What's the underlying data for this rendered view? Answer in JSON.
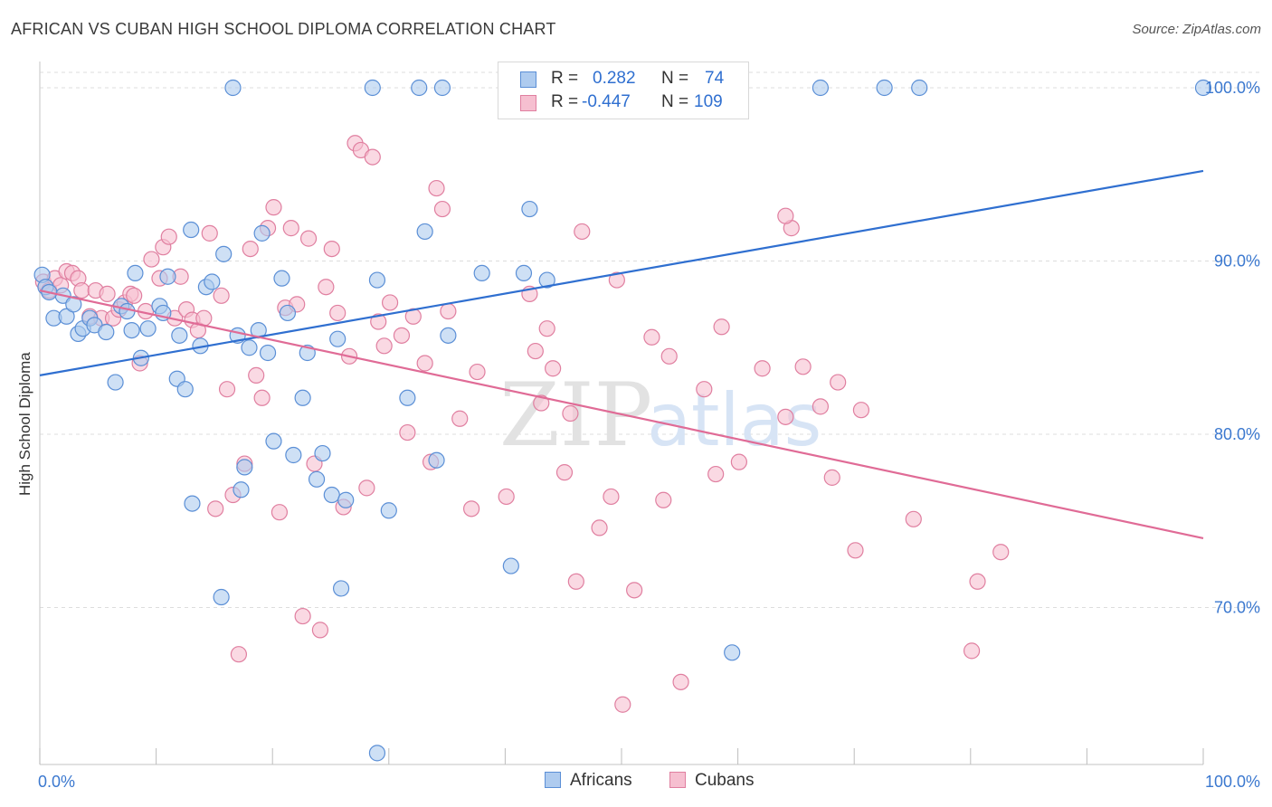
{
  "header": {
    "title": "AFRICAN VS CUBAN HIGH SCHOOL DIPLOMA CORRELATION CHART",
    "source": "Source: ZipAtlas.com"
  },
  "watermark": {
    "zip": "ZIP",
    "atlas": "atlas"
  },
  "legend": {
    "africans": {
      "r_label": "R =",
      "r_value": "0.282",
      "n_label": "N =",
      "n_value": "74"
    },
    "cubans": {
      "r_label": "R =",
      "r_value": "-0.447",
      "n_label": "N =",
      "n_value": "109"
    }
  },
  "bottom_legend": {
    "africans": "Africans",
    "cubans": "Cubans"
  },
  "colors": {
    "africans_fill": "#aecbef",
    "africans_stroke": "#5b8fd6",
    "africans_line": "#2f6fd0",
    "cubans_fill": "#f6bfd0",
    "cubans_stroke": "#e07fa0",
    "cubans_line": "#e06b96",
    "axis_text": "#3b78cf",
    "grid": "#dddddd"
  },
  "chart_data": {
    "type": "scatter",
    "title": "AFRICAN VS CUBAN HIGH SCHOOL DIPLOMA CORRELATION CHART",
    "xlabel": "",
    "ylabel": "High School Diploma",
    "xlim": [
      0,
      100
    ],
    "ylim": [
      61,
      101
    ],
    "x_tick_labels": [
      {
        "v": 0,
        "label": "0.0%"
      },
      {
        "v": 100,
        "label": "100.0%"
      }
    ],
    "y_tick_labels": [
      {
        "v": 100,
        "label": "100.0%"
      },
      {
        "v": 90,
        "label": "90.0%"
      },
      {
        "v": 80,
        "label": "80.0%"
      },
      {
        "v": 70,
        "label": "70.0%"
      }
    ],
    "grid": true,
    "legend_position": "top-center",
    "series": [
      {
        "name": "Africans",
        "trend": [
          [
            0,
            83.4
          ],
          [
            100,
            95.2
          ]
        ],
        "points": [
          [
            0.2,
            89.2
          ],
          [
            0.5,
            88.5
          ],
          [
            1.2,
            86.7
          ],
          [
            2.0,
            88.0
          ],
          [
            2.3,
            86.8
          ],
          [
            2.9,
            87.5
          ],
          [
            3.3,
            85.8
          ],
          [
            3.7,
            86.1
          ],
          [
            4.3,
            86.7
          ],
          [
            4.7,
            86.3
          ],
          [
            5.7,
            85.9
          ],
          [
            6.5,
            83.0
          ],
          [
            7.0,
            87.4
          ],
          [
            7.5,
            87.1
          ],
          [
            7.9,
            86.0
          ],
          [
            8.2,
            89.3
          ],
          [
            8.7,
            84.4
          ],
          [
            9.3,
            86.1
          ],
          [
            10.3,
            87.4
          ],
          [
            10.6,
            87.0
          ],
          [
            11.0,
            89.1
          ],
          [
            11.8,
            83.2
          ],
          [
            12.0,
            85.7
          ],
          [
            12.5,
            82.6
          ],
          [
            13.0,
            91.8
          ],
          [
            13.8,
            85.1
          ],
          [
            14.3,
            88.5
          ],
          [
            14.8,
            88.8
          ],
          [
            15.8,
            90.4
          ],
          [
            16.6,
            100.0
          ],
          [
            17.0,
            85.7
          ],
          [
            17.3,
            76.8
          ],
          [
            17.6,
            78.1
          ],
          [
            18.0,
            85.0
          ],
          [
            18.8,
            86.0
          ],
          [
            19.1,
            91.6
          ],
          [
            19.6,
            84.7
          ],
          [
            20.1,
            79.6
          ],
          [
            20.8,
            89.0
          ],
          [
            21.3,
            87.0
          ],
          [
            21.8,
            78.8
          ],
          [
            22.6,
            82.1
          ],
          [
            23.0,
            84.7
          ],
          [
            23.8,
            77.4
          ],
          [
            24.3,
            78.9
          ],
          [
            25.1,
            76.5
          ],
          [
            25.6,
            85.5
          ],
          [
            25.9,
            71.1
          ],
          [
            26.3,
            76.2
          ],
          [
            29.0,
            61.6
          ],
          [
            28.6,
            100.0
          ],
          [
            29.0,
            88.9
          ],
          [
            30.0,
            75.6
          ],
          [
            31.6,
            82.1
          ],
          [
            32.6,
            100.0
          ],
          [
            33.1,
            91.7
          ],
          [
            34.1,
            78.5
          ],
          [
            34.6,
            100.0
          ],
          [
            35.1,
            85.7
          ],
          [
            38.0,
            89.3
          ],
          [
            40.5,
            72.4
          ],
          [
            41.6,
            89.3
          ],
          [
            42.1,
            93.0
          ],
          [
            43.6,
            88.9
          ],
          [
            13.1,
            76.0
          ],
          [
            15.6,
            70.6
          ],
          [
            51.1,
            100.0
          ],
          [
            53.6,
            100.0
          ],
          [
            59.5,
            67.4
          ],
          [
            67.1,
            100.0
          ],
          [
            72.6,
            100.0
          ],
          [
            75.6,
            100.0
          ],
          [
            100.0,
            100.0
          ],
          [
            0.8,
            88.2
          ]
        ]
      },
      {
        "name": "Cubans",
        "trend": [
          [
            0,
            88.3
          ],
          [
            100,
            74.0
          ]
        ],
        "points": [
          [
            0.3,
            88.8
          ],
          [
            0.8,
            88.3
          ],
          [
            1.3,
            89.0
          ],
          [
            1.8,
            88.6
          ],
          [
            2.3,
            89.4
          ],
          [
            2.8,
            89.3
          ],
          [
            3.3,
            89.0
          ],
          [
            3.6,
            88.3
          ],
          [
            4.3,
            86.8
          ],
          [
            4.8,
            88.3
          ],
          [
            5.3,
            86.7
          ],
          [
            5.8,
            88.1
          ],
          [
            6.3,
            86.7
          ],
          [
            6.8,
            87.2
          ],
          [
            7.3,
            87.6
          ],
          [
            7.8,
            88.1
          ],
          [
            8.1,
            88.0
          ],
          [
            8.6,
            84.1
          ],
          [
            9.1,
            87.1
          ],
          [
            9.6,
            90.1
          ],
          [
            10.3,
            89.0
          ],
          [
            10.6,
            90.8
          ],
          [
            11.1,
            91.4
          ],
          [
            11.6,
            86.7
          ],
          [
            12.1,
            89.1
          ],
          [
            12.6,
            87.2
          ],
          [
            13.1,
            86.6
          ],
          [
            13.6,
            86.0
          ],
          [
            14.1,
            86.7
          ],
          [
            14.6,
            91.6
          ],
          [
            15.1,
            75.7
          ],
          [
            15.6,
            88.0
          ],
          [
            16.1,
            82.6
          ],
          [
            16.6,
            76.5
          ],
          [
            17.1,
            67.3
          ],
          [
            17.6,
            78.3
          ],
          [
            18.1,
            90.7
          ],
          [
            18.6,
            83.4
          ],
          [
            19.1,
            82.1
          ],
          [
            19.6,
            91.9
          ],
          [
            20.1,
            93.1
          ],
          [
            20.6,
            75.5
          ],
          [
            21.1,
            87.3
          ],
          [
            21.6,
            91.9
          ],
          [
            22.1,
            87.5
          ],
          [
            22.6,
            69.5
          ],
          [
            23.1,
            91.3
          ],
          [
            23.6,
            78.3
          ],
          [
            24.1,
            68.7
          ],
          [
            24.6,
            88.5
          ],
          [
            25.1,
            90.7
          ],
          [
            25.6,
            87.0
          ],
          [
            26.1,
            75.8
          ],
          [
            26.6,
            84.5
          ],
          [
            27.1,
            96.8
          ],
          [
            27.6,
            96.4
          ],
          [
            28.1,
            76.9
          ],
          [
            28.6,
            96.0
          ],
          [
            29.1,
            86.5
          ],
          [
            29.6,
            85.1
          ],
          [
            30.1,
            87.6
          ],
          [
            31.1,
            85.7
          ],
          [
            31.6,
            80.1
          ],
          [
            32.1,
            86.8
          ],
          [
            33.1,
            84.1
          ],
          [
            33.6,
            78.4
          ],
          [
            34.1,
            94.2
          ],
          [
            34.6,
            93.0
          ],
          [
            35.1,
            87.1
          ],
          [
            36.1,
            80.9
          ],
          [
            37.1,
            75.7
          ],
          [
            37.6,
            83.6
          ],
          [
            40.1,
            76.4
          ],
          [
            42.1,
            88.1
          ],
          [
            42.6,
            84.8
          ],
          [
            43.1,
            81.8
          ],
          [
            43.6,
            86.1
          ],
          [
            44.1,
            83.8
          ],
          [
            45.1,
            77.8
          ],
          [
            45.6,
            81.2
          ],
          [
            46.1,
            71.5
          ],
          [
            46.6,
            91.7
          ],
          [
            48.1,
            74.6
          ],
          [
            49.1,
            76.4
          ],
          [
            50.1,
            64.4
          ],
          [
            51.1,
            71.0
          ],
          [
            52.6,
            85.6
          ],
          [
            53.6,
            76.2
          ],
          [
            54.1,
            84.5
          ],
          [
            55.1,
            65.7
          ],
          [
            57.1,
            82.6
          ],
          [
            58.6,
            86.2
          ],
          [
            60.1,
            78.4
          ],
          [
            62.1,
            83.8
          ],
          [
            64.1,
            81.0
          ],
          [
            64.6,
            91.9
          ],
          [
            65.6,
            83.9
          ],
          [
            67.1,
            81.6
          ],
          [
            68.1,
            77.5
          ],
          [
            68.6,
            83.0
          ],
          [
            70.1,
            73.3
          ],
          [
            70.6,
            81.4
          ],
          [
            75.1,
            75.1
          ],
          [
            80.1,
            67.5
          ],
          [
            80.6,
            71.5
          ],
          [
            82.6,
            73.2
          ],
          [
            64.1,
            92.6
          ],
          [
            49.6,
            88.9
          ],
          [
            58.1,
            77.7
          ]
        ]
      }
    ]
  }
}
